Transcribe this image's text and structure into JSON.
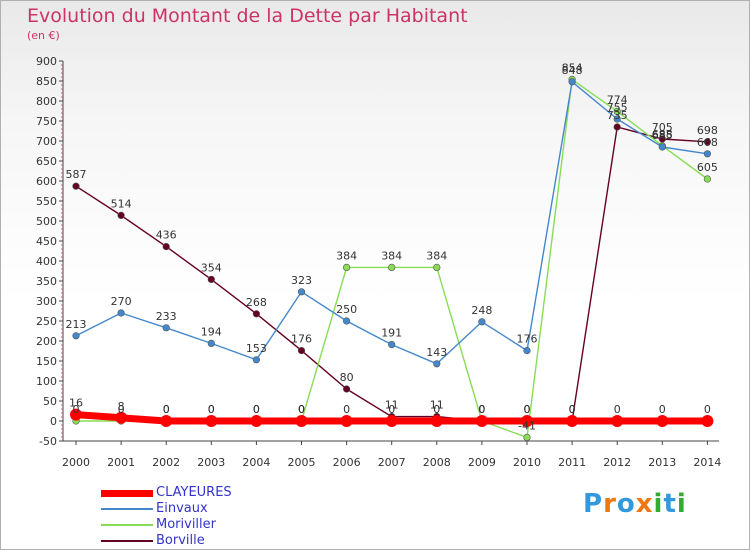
{
  "header": {
    "title": "Evolution du Montant de la Dette par Habitant",
    "subtitle": "(en €)"
  },
  "logo": {
    "text": "Proxiti",
    "colors": [
      "#3399dd",
      "#ee7711",
      "#3399dd",
      "#ee7711",
      "#33aa33",
      "#3399dd",
      "#33aa33"
    ]
  },
  "chart_data": {
    "type": "line",
    "title": "Evolution du Montant de la Dette par Habitant",
    "subtitle": "(en €)",
    "x": [
      "2000",
      "2001",
      "2002",
      "2003",
      "2004",
      "2005",
      "2006",
      "2007",
      "2008",
      "2009",
      "2010",
      "2011",
      "2012",
      "2013",
      "2014"
    ],
    "yticks": [
      "-50",
      "0",
      "50",
      "100",
      "150",
      "200",
      "250",
      "300",
      "350",
      "400",
      "450",
      "500",
      "550",
      "600",
      "650",
      "700",
      "750",
      "800",
      "850",
      "900"
    ],
    "ylim": [
      -50,
      900
    ],
    "grid": false,
    "legend_position": "bottom-left",
    "series": [
      {
        "name": "CLAYEURES",
        "color": "#ff0000",
        "values": [
          16,
          8,
          0,
          0,
          0,
          0,
          0,
          0,
          0,
          0,
          0,
          0,
          0,
          0,
          0
        ],
        "labels": [
          "16",
          "8",
          "0",
          "0",
          "0",
          "0",
          "0",
          "0",
          "0",
          "0",
          "0",
          "0",
          "0",
          "0",
          "0"
        ]
      },
      {
        "name": "Einvaux",
        "color": "#4488cc",
        "values": [
          213,
          270,
          233,
          194,
          153,
          323,
          250,
          191,
          143,
          248,
          176,
          848,
          755,
          685,
          668
        ],
        "labels": [
          "213",
          "270",
          "233",
          "194",
          "153",
          "323",
          "250",
          "191",
          "143",
          "248",
          "176",
          "848",
          "755",
          "685",
          "668"
        ]
      },
      {
        "name": "Moriviller",
        "color": "#88dd55",
        "values": [
          0,
          0,
          0,
          0,
          0,
          0,
          384,
          384,
          384,
          0,
          -41,
          854,
          774,
          688,
          605
        ],
        "labels": [
          "0",
          "0",
          "0",
          "0",
          "0",
          "0",
          "384",
          "384",
          "384",
          "0",
          "-41",
          "854",
          "774",
          "688",
          "605"
        ]
      },
      {
        "name": "Borville",
        "color": "#660022",
        "values": [
          587,
          514,
          436,
          354,
          268,
          176,
          80,
          11,
          11,
          0,
          0,
          0,
          735,
          705,
          698
        ],
        "labels": [
          "587",
          "514",
          "436",
          "354",
          "268",
          "176",
          "80",
          "11",
          "11",
          "0",
          "0",
          "0",
          "735",
          "705",
          "698"
        ]
      }
    ]
  }
}
